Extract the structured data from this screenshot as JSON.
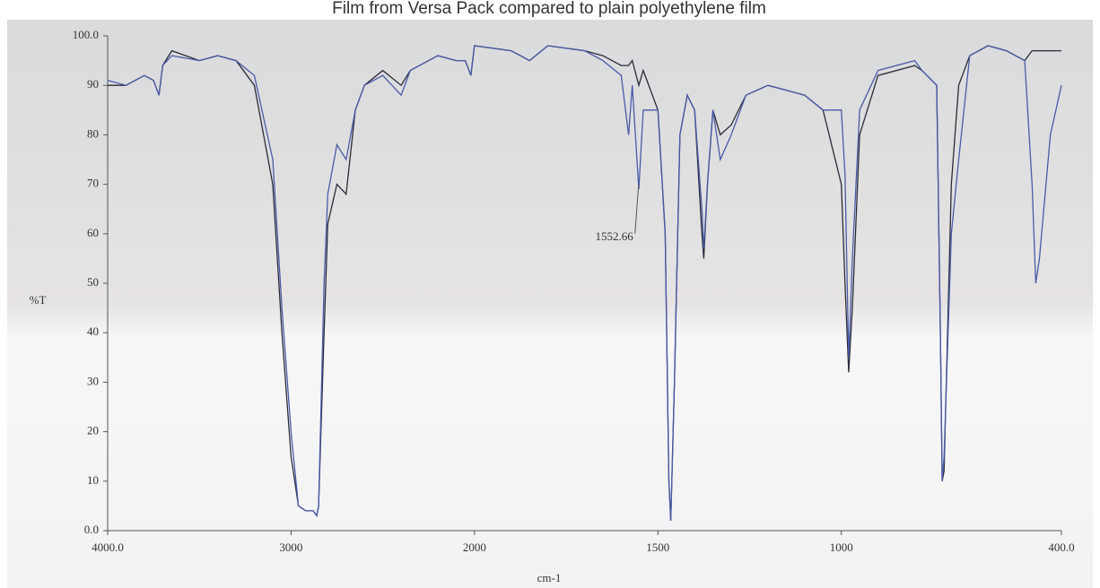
{
  "chart_data": {
    "type": "line",
    "title": "Film from Versa Pack compared to plain polyethylene film",
    "x_label": "cm-1",
    "y_label": "%T",
    "xlim": [
      4000,
      400
    ],
    "x_scale_break": 2000,
    "ylim": [
      0,
      100
    ],
    "xticks": [
      {
        "value": 4000,
        "label": "4000.0"
      },
      3000,
      2000,
      1500,
      1000,
      {
        "value": 400,
        "label": "400.0"
      }
    ],
    "yticks": [
      {
        "value": 0,
        "label": "0.0"
      },
      10,
      20,
      30,
      40,
      50,
      60,
      70,
      80,
      90,
      {
        "value": 100,
        "label": "100.0"
      }
    ],
    "annotations": [
      {
        "value": 1552.66,
        "label": "1552.66"
      }
    ],
    "x": [
      4000,
      3900,
      3800,
      3750,
      3720,
      3700,
      3650,
      3500,
      3400,
      3300,
      3200,
      3100,
      3050,
      3000,
      2960,
      2920,
      2880,
      2860,
      2850,
      2820,
      2800,
      2750,
      2700,
      2650,
      2600,
      2500,
      2400,
      2350,
      2200,
      2100,
      2050,
      2020,
      2000,
      1900,
      1850,
      1800,
      1700,
      1650,
      1600,
      1580,
      1570,
      1552,
      1540,
      1500,
      1480,
      1470,
      1465,
      1455,
      1440,
      1420,
      1400,
      1380,
      1375,
      1365,
      1350,
      1330,
      1300,
      1260,
      1200,
      1100,
      1050,
      1000,
      990,
      980,
      970,
      950,
      900,
      800,
      780,
      740,
      730,
      725,
      720,
      700,
      680,
      650,
      600,
      550,
      500,
      480,
      470,
      460,
      430,
      400
    ],
    "series": [
      {
        "color": "#2b2b3a",
        "values": [
          90,
          90,
          92,
          91,
          88,
          94,
          97,
          95,
          96,
          95,
          90,
          70,
          40,
          15,
          5,
          4,
          4,
          3,
          5,
          40,
          62,
          70,
          68,
          85,
          90,
          93,
          90,
          93,
          96,
          95,
          95,
          92,
          98,
          97,
          95,
          98,
          97,
          96,
          94,
          94,
          95,
          90,
          93,
          85,
          60,
          10,
          2,
          30,
          80,
          88,
          85,
          60,
          55,
          70,
          85,
          80,
          82,
          88,
          90,
          88,
          85,
          70,
          50,
          32,
          45,
          80,
          92,
          94,
          93,
          90,
          40,
          10,
          12,
          70,
          90,
          96,
          98,
          97,
          95,
          97,
          97,
          97,
          97,
          97
        ]
      },
      {
        "color": "#4a5aa8",
        "values": [
          91,
          90,
          92,
          91,
          88,
          94,
          96,
          95,
          96,
          95,
          92,
          75,
          45,
          20,
          5,
          4,
          4,
          3,
          5,
          50,
          68,
          78,
          75,
          85,
          90,
          92,
          88,
          93,
          96,
          95,
          95,
          92,
          98,
          97,
          95,
          98,
          97,
          95,
          92,
          80,
          90,
          69,
          85,
          85,
          60,
          10,
          2,
          30,
          80,
          88,
          85,
          65,
          57,
          70,
          85,
          75,
          80,
          88,
          90,
          88,
          85,
          85,
          72,
          35,
          55,
          85,
          93,
          95,
          93,
          90,
          40,
          10,
          15,
          60,
          75,
          96,
          98,
          97,
          95,
          70,
          50,
          55,
          80,
          90
        ]
      }
    ]
  }
}
